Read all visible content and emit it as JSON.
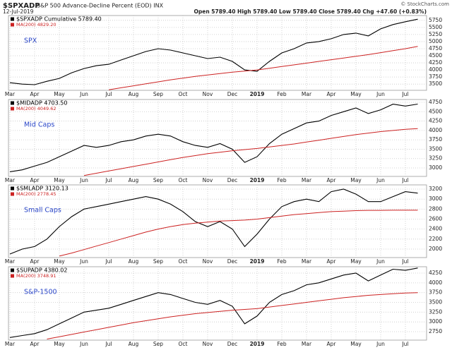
{
  "header": {
    "title": "$SPXADP",
    "subtitle": "S&P 500 Advance-Decline Percent (EOD) INX",
    "date": "12-Jul-2019",
    "quote": "Open 5789.40 High 5789.40 Low 5789.40 Close 5789.40 Chg +47.60 (+0.83%)",
    "credit": "© StockCharts.com"
  },
  "chart_data": [
    {
      "type": "line",
      "annotation": "SPX",
      "categories": [
        "Mar",
        null,
        "Apr",
        null,
        "May",
        null,
        "Jun",
        null,
        "Jul",
        null,
        "Aug",
        null,
        "Sep",
        null,
        "Oct",
        null,
        "Nov",
        null,
        "Dec",
        null,
        "2019",
        null,
        "Feb",
        null,
        "Mar",
        null,
        "Apr",
        null,
        "May",
        null,
        "Jun",
        null,
        "Jul",
        null
      ],
      "series": [
        {
          "name": "$SPXADP Cumulative 5789.40",
          "color": "#000000",
          "values": [
            3550,
            3500,
            3480,
            3600,
            3700,
            3900,
            4050,
            4150,
            4200,
            4350,
            4500,
            4650,
            4750,
            4700,
            4600,
            4500,
            4400,
            4450,
            4300,
            4000,
            3950,
            4300,
            4600,
            4750,
            4950,
            5000,
            5100,
            5250,
            5300,
            5200,
            5450,
            5600,
            5700,
            5789.4
          ]
        },
        {
          "name": "MA(200) 4829.20",
          "color": "#cc2222",
          "values": [
            null,
            null,
            null,
            null,
            null,
            null,
            null,
            null,
            3300,
            3370,
            3440,
            3510,
            3580,
            3650,
            3710,
            3770,
            3820,
            3870,
            3920,
            3960,
            4000,
            4060,
            4120,
            4180,
            4240,
            4300,
            4360,
            4420,
            4480,
            4540,
            4610,
            4680,
            4750,
            4829.2
          ]
        }
      ],
      "ylim": [
        3280,
        5920
      ],
      "yticks": [
        3500,
        3750,
        4000,
        4250,
        4500,
        4750,
        5000,
        5250,
        5500,
        5750
      ],
      "grid": true
    },
    {
      "type": "line",
      "annotation": "Mid Caps",
      "categories": [
        "Mar",
        null,
        "Apr",
        null,
        "May",
        null,
        "Jun",
        null,
        "Jul",
        null,
        "Aug",
        null,
        "Sep",
        null,
        "Oct",
        null,
        "Nov",
        null,
        "Dec",
        null,
        "2019",
        null,
        "Feb",
        null,
        "Mar",
        null,
        "Apr",
        null,
        "May",
        null,
        "Jun",
        null,
        "Jul",
        null
      ],
      "series": [
        {
          "name": "$MIDADP 4703.50",
          "color": "#000000",
          "values": [
            2900,
            2950,
            3050,
            3150,
            3300,
            3450,
            3600,
            3550,
            3600,
            3700,
            3750,
            3850,
            3900,
            3850,
            3700,
            3600,
            3550,
            3650,
            3500,
            3150,
            3300,
            3650,
            3900,
            4050,
            4200,
            4250,
            4400,
            4500,
            4600,
            4450,
            4550,
            4700,
            4650,
            4703.5
          ]
        },
        {
          "name": "MA(200) 4049.62",
          "color": "#cc2222",
          "values": [
            null,
            null,
            null,
            null,
            null,
            null,
            2800,
            2860,
            2920,
            2980,
            3040,
            3100,
            3160,
            3220,
            3280,
            3330,
            3380,
            3420,
            3460,
            3490,
            3520,
            3560,
            3600,
            3640,
            3690,
            3740,
            3790,
            3840,
            3890,
            3930,
            3970,
            4000,
            4030,
            4049.62
          ]
        }
      ],
      "ylim": [
        2775,
        4825
      ],
      "yticks": [
        3000,
        3250,
        3500,
        3750,
        4000,
        4250,
        4500,
        4750
      ],
      "grid": true
    },
    {
      "type": "line",
      "annotation": "Small Caps",
      "categories": [
        "Mar",
        null,
        "Apr",
        null,
        "May",
        null,
        "Jun",
        null,
        "Jul",
        null,
        "Aug",
        null,
        "Sep",
        null,
        "Oct",
        null,
        "Nov",
        null,
        "Dec",
        null,
        "2019",
        null,
        "Feb",
        null,
        "Mar",
        null,
        "Apr",
        null,
        "May",
        null,
        "Jun",
        null,
        "Jul",
        null
      ],
      "series": [
        {
          "name": "$SMLADP 3120.13",
          "color": "#000000",
          "values": [
            1900,
            2000,
            2050,
            2200,
            2450,
            2650,
            2800,
            2850,
            2900,
            2950,
            3000,
            3050,
            3000,
            2900,
            2750,
            2550,
            2450,
            2550,
            2400,
            2050,
            2300,
            2600,
            2850,
            2950,
            3000,
            2950,
            3150,
            3200,
            3100,
            2950,
            2950,
            3050,
            3150,
            3120.13
          ]
        },
        {
          "name": "MA(200) 2778.45",
          "color": "#cc2222",
          "values": [
            null,
            null,
            null,
            null,
            1860,
            1920,
            1990,
            2060,
            2130,
            2200,
            2270,
            2340,
            2400,
            2450,
            2490,
            2520,
            2540,
            2560,
            2570,
            2580,
            2600,
            2630,
            2660,
            2690,
            2710,
            2730,
            2750,
            2760,
            2770,
            2775,
            2775,
            2778,
            2778,
            2778.45
          ]
        }
      ],
      "ylim": [
        1830,
        3285
      ],
      "yticks": [
        2000,
        2200,
        2400,
        2600,
        2800,
        3000,
        3200
      ],
      "grid": true
    },
    {
      "type": "line",
      "annotation": "S&P-1500",
      "categories": [
        "Mar",
        null,
        "Apr",
        null,
        "May",
        null,
        "Jun",
        null,
        "Jul",
        null,
        "Aug",
        null,
        "Sep",
        null,
        "Oct",
        null,
        "Nov",
        null,
        "Dec",
        null,
        "2019",
        null,
        "Feb",
        null,
        "Mar",
        null,
        "Apr",
        null,
        "May",
        null,
        "Jun",
        null,
        "Jul",
        null
      ],
      "series": [
        {
          "name": "$SUPADP 4380.02",
          "color": "#000000",
          "values": [
            2600,
            2650,
            2700,
            2800,
            2950,
            3100,
            3250,
            3300,
            3350,
            3450,
            3550,
            3650,
            3750,
            3700,
            3600,
            3500,
            3450,
            3550,
            3400,
            2950,
            3150,
            3500,
            3700,
            3800,
            3950,
            4000,
            4100,
            4200,
            4250,
            4050,
            4200,
            4350,
            4320,
            4380.02
          ]
        },
        {
          "name": "MA(200) 3748.91",
          "color": "#cc2222",
          "values": [
            null,
            null,
            null,
            2560,
            2620,
            2680,
            2740,
            2800,
            2860,
            2920,
            2980,
            3030,
            3080,
            3130,
            3170,
            3210,
            3240,
            3270,
            3300,
            3320,
            3340,
            3380,
            3420,
            3460,
            3500,
            3540,
            3580,
            3620,
            3650,
            3680,
            3700,
            3720,
            3740,
            3748.91
          ]
        }
      ],
      "ylim": [
        2533,
        4413
      ],
      "yticks": [
        2750,
        3000,
        3250,
        3500,
        3750,
        4000,
        4250
      ],
      "grid": true
    }
  ]
}
